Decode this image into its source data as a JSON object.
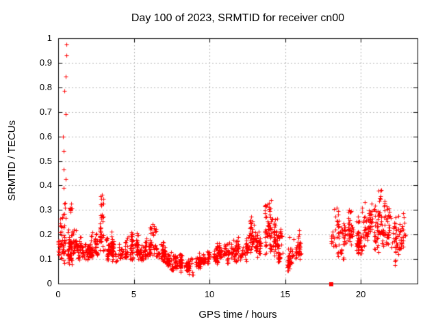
{
  "page": {
    "background": "#ffffff"
  },
  "chart_data": {
    "type": "scatter",
    "title": "Day 100 of 2023, SRMTID for receiver cn00",
    "xlabel": "GPS time / hours",
    "ylabel": "SRMTID / TECUs",
    "xlim": [
      0,
      23.75
    ],
    "ylim": [
      0,
      1
    ],
    "xticks": [
      0,
      5,
      10,
      15,
      20
    ],
    "xtick_labels": [
      "0",
      "5",
      "10",
      "15",
      "20"
    ],
    "yticks": [
      0,
      0.1,
      0.2,
      0.3,
      0.4,
      0.5,
      0.6,
      0.7,
      0.8,
      0.9,
      1
    ],
    "ytick_labels": [
      "0",
      "0.1",
      "0.2",
      "0.3",
      "0.4",
      "0.5",
      "0.6",
      "0.7",
      "0.8",
      "0.9",
      "1"
    ],
    "grid": true,
    "legend_position": "none",
    "marker": "plus",
    "marker_color": "#ff0000",
    "grid_color": "#b3b3b3",
    "axis_color": "#000000",
    "high_outliers": [
      [
        0.55,
        0.975
      ],
      [
        0.55,
        0.93
      ],
      [
        0.5,
        0.845
      ],
      [
        0.42,
        0.785
      ],
      [
        0.48,
        0.69
      ],
      [
        0.33,
        0.6
      ],
      [
        0.38,
        0.54
      ],
      [
        0.38,
        0.465
      ],
      [
        0.38,
        0.39
      ],
      [
        0.52,
        0.425
      ]
    ],
    "isolated_point": {
      "x": 18.05,
      "y": 0.0,
      "marker": "filled-square"
    },
    "data_gap_hours": [
      16.0,
      18.0
    ],
    "band_format": [
      "x_start",
      "x_end",
      "y_min",
      "y_max",
      "n_points"
    ],
    "density_bands": [
      [
        0.0,
        0.5,
        0.07,
        0.33,
        60
      ],
      [
        0.5,
        1.0,
        0.07,
        0.24,
        55
      ],
      [
        0.55,
        0.85,
        0.24,
        0.34,
        10
      ],
      [
        1.0,
        1.5,
        0.08,
        0.22,
        48
      ],
      [
        1.5,
        2.0,
        0.08,
        0.19,
        45
      ],
      [
        2.0,
        2.5,
        0.09,
        0.21,
        45
      ],
      [
        2.5,
        2.85,
        0.1,
        0.26,
        35
      ],
      [
        2.8,
        3.0,
        0.2,
        0.42,
        16
      ],
      [
        3.0,
        3.5,
        0.09,
        0.21,
        45
      ],
      [
        3.5,
        4.0,
        0.08,
        0.22,
        45
      ],
      [
        4.0,
        4.5,
        0.08,
        0.18,
        42
      ],
      [
        4.5,
        5.0,
        0.08,
        0.21,
        42
      ],
      [
        5.0,
        5.5,
        0.1,
        0.22,
        45
      ],
      [
        5.5,
        6.0,
        0.09,
        0.19,
        42
      ],
      [
        6.0,
        6.5,
        0.1,
        0.25,
        45
      ],
      [
        6.5,
        7.0,
        0.08,
        0.17,
        40
      ],
      [
        7.0,
        7.5,
        0.06,
        0.16,
        40
      ],
      [
        7.5,
        8.0,
        0.05,
        0.14,
        40
      ],
      [
        8.0,
        8.5,
        0.04,
        0.12,
        40
      ],
      [
        8.5,
        9.0,
        0.03,
        0.11,
        40
      ],
      [
        9.0,
        9.5,
        0.05,
        0.13,
        40
      ],
      [
        9.5,
        10.0,
        0.06,
        0.14,
        40
      ],
      [
        10.0,
        10.5,
        0.07,
        0.15,
        40
      ],
      [
        10.5,
        11.0,
        0.08,
        0.17,
        40
      ],
      [
        11.0,
        11.5,
        0.08,
        0.17,
        42
      ],
      [
        11.5,
        12.0,
        0.09,
        0.19,
        42
      ],
      [
        12.0,
        12.5,
        0.08,
        0.2,
        45
      ],
      [
        12.5,
        13.0,
        0.1,
        0.28,
        45
      ],
      [
        13.0,
        13.5,
        0.08,
        0.22,
        45
      ],
      [
        13.5,
        14.0,
        0.11,
        0.35,
        50
      ],
      [
        14.0,
        14.5,
        0.09,
        0.28,
        45
      ],
      [
        14.5,
        15.0,
        0.08,
        0.23,
        45
      ],
      [
        15.0,
        15.5,
        0.05,
        0.2,
        45
      ],
      [
        15.5,
        16.0,
        0.08,
        0.22,
        40
      ],
      [
        18.05,
        18.5,
        0.13,
        0.31,
        28
      ],
      [
        18.5,
        19.0,
        0.1,
        0.26,
        40
      ],
      [
        19.0,
        19.5,
        0.12,
        0.31,
        42
      ],
      [
        19.5,
        20.0,
        0.1,
        0.28,
        40
      ],
      [
        20.0,
        20.5,
        0.1,
        0.34,
        42
      ],
      [
        20.5,
        21.0,
        0.13,
        0.33,
        45
      ],
      [
        21.0,
        21.5,
        0.1,
        0.385,
        48
      ],
      [
        21.5,
        22.0,
        0.14,
        0.36,
        42
      ],
      [
        22.0,
        22.5,
        0.07,
        0.3,
        40
      ],
      [
        22.5,
        22.9,
        0.12,
        0.29,
        30
      ]
    ]
  }
}
